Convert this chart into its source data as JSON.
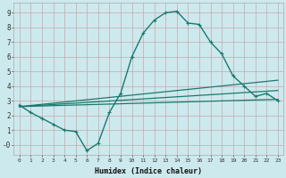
{
  "xlabel": "Humidex (Indice chaleur)",
  "xlim": [
    -0.5,
    23.5
  ],
  "ylim": [
    -0.7,
    9.7
  ],
  "yticks": [
    0,
    1,
    2,
    3,
    4,
    5,
    6,
    7,
    8,
    9
  ],
  "ytick_labels": [
    "-0",
    "1",
    "2",
    "3",
    "4",
    "5",
    "6",
    "7",
    "8",
    "9"
  ],
  "xticks": [
    0,
    1,
    2,
    3,
    4,
    5,
    6,
    7,
    8,
    9,
    10,
    11,
    12,
    13,
    14,
    15,
    16,
    17,
    18,
    19,
    20,
    21,
    22,
    23
  ],
  "background_color": "#cce9ee",
  "grid_color": "#b8d8de",
  "line_color": "#1a7a6e",
  "main_x": [
    0,
    1,
    2,
    3,
    4,
    5,
    6,
    7,
    8,
    9,
    10,
    11,
    12,
    13,
    14,
    15,
    16,
    17,
    18,
    19,
    20,
    21,
    22,
    23
  ],
  "main_y": [
    2.7,
    2.2,
    1.8,
    1.4,
    1.0,
    0.9,
    -0.4,
    0.1,
    2.2,
    3.5,
    6.0,
    7.6,
    8.5,
    9.0,
    9.1,
    8.3,
    8.2,
    7.0,
    6.2,
    4.7,
    4.0,
    3.3,
    3.5,
    3.0
  ],
  "flat_line1_x": [
    0,
    23
  ],
  "flat_line1_y": [
    2.6,
    4.4
  ],
  "flat_line2_x": [
    0,
    23
  ],
  "flat_line2_y": [
    2.6,
    3.7
  ],
  "flat_line3_x": [
    0,
    23
  ],
  "flat_line3_y": [
    2.6,
    3.1
  ]
}
